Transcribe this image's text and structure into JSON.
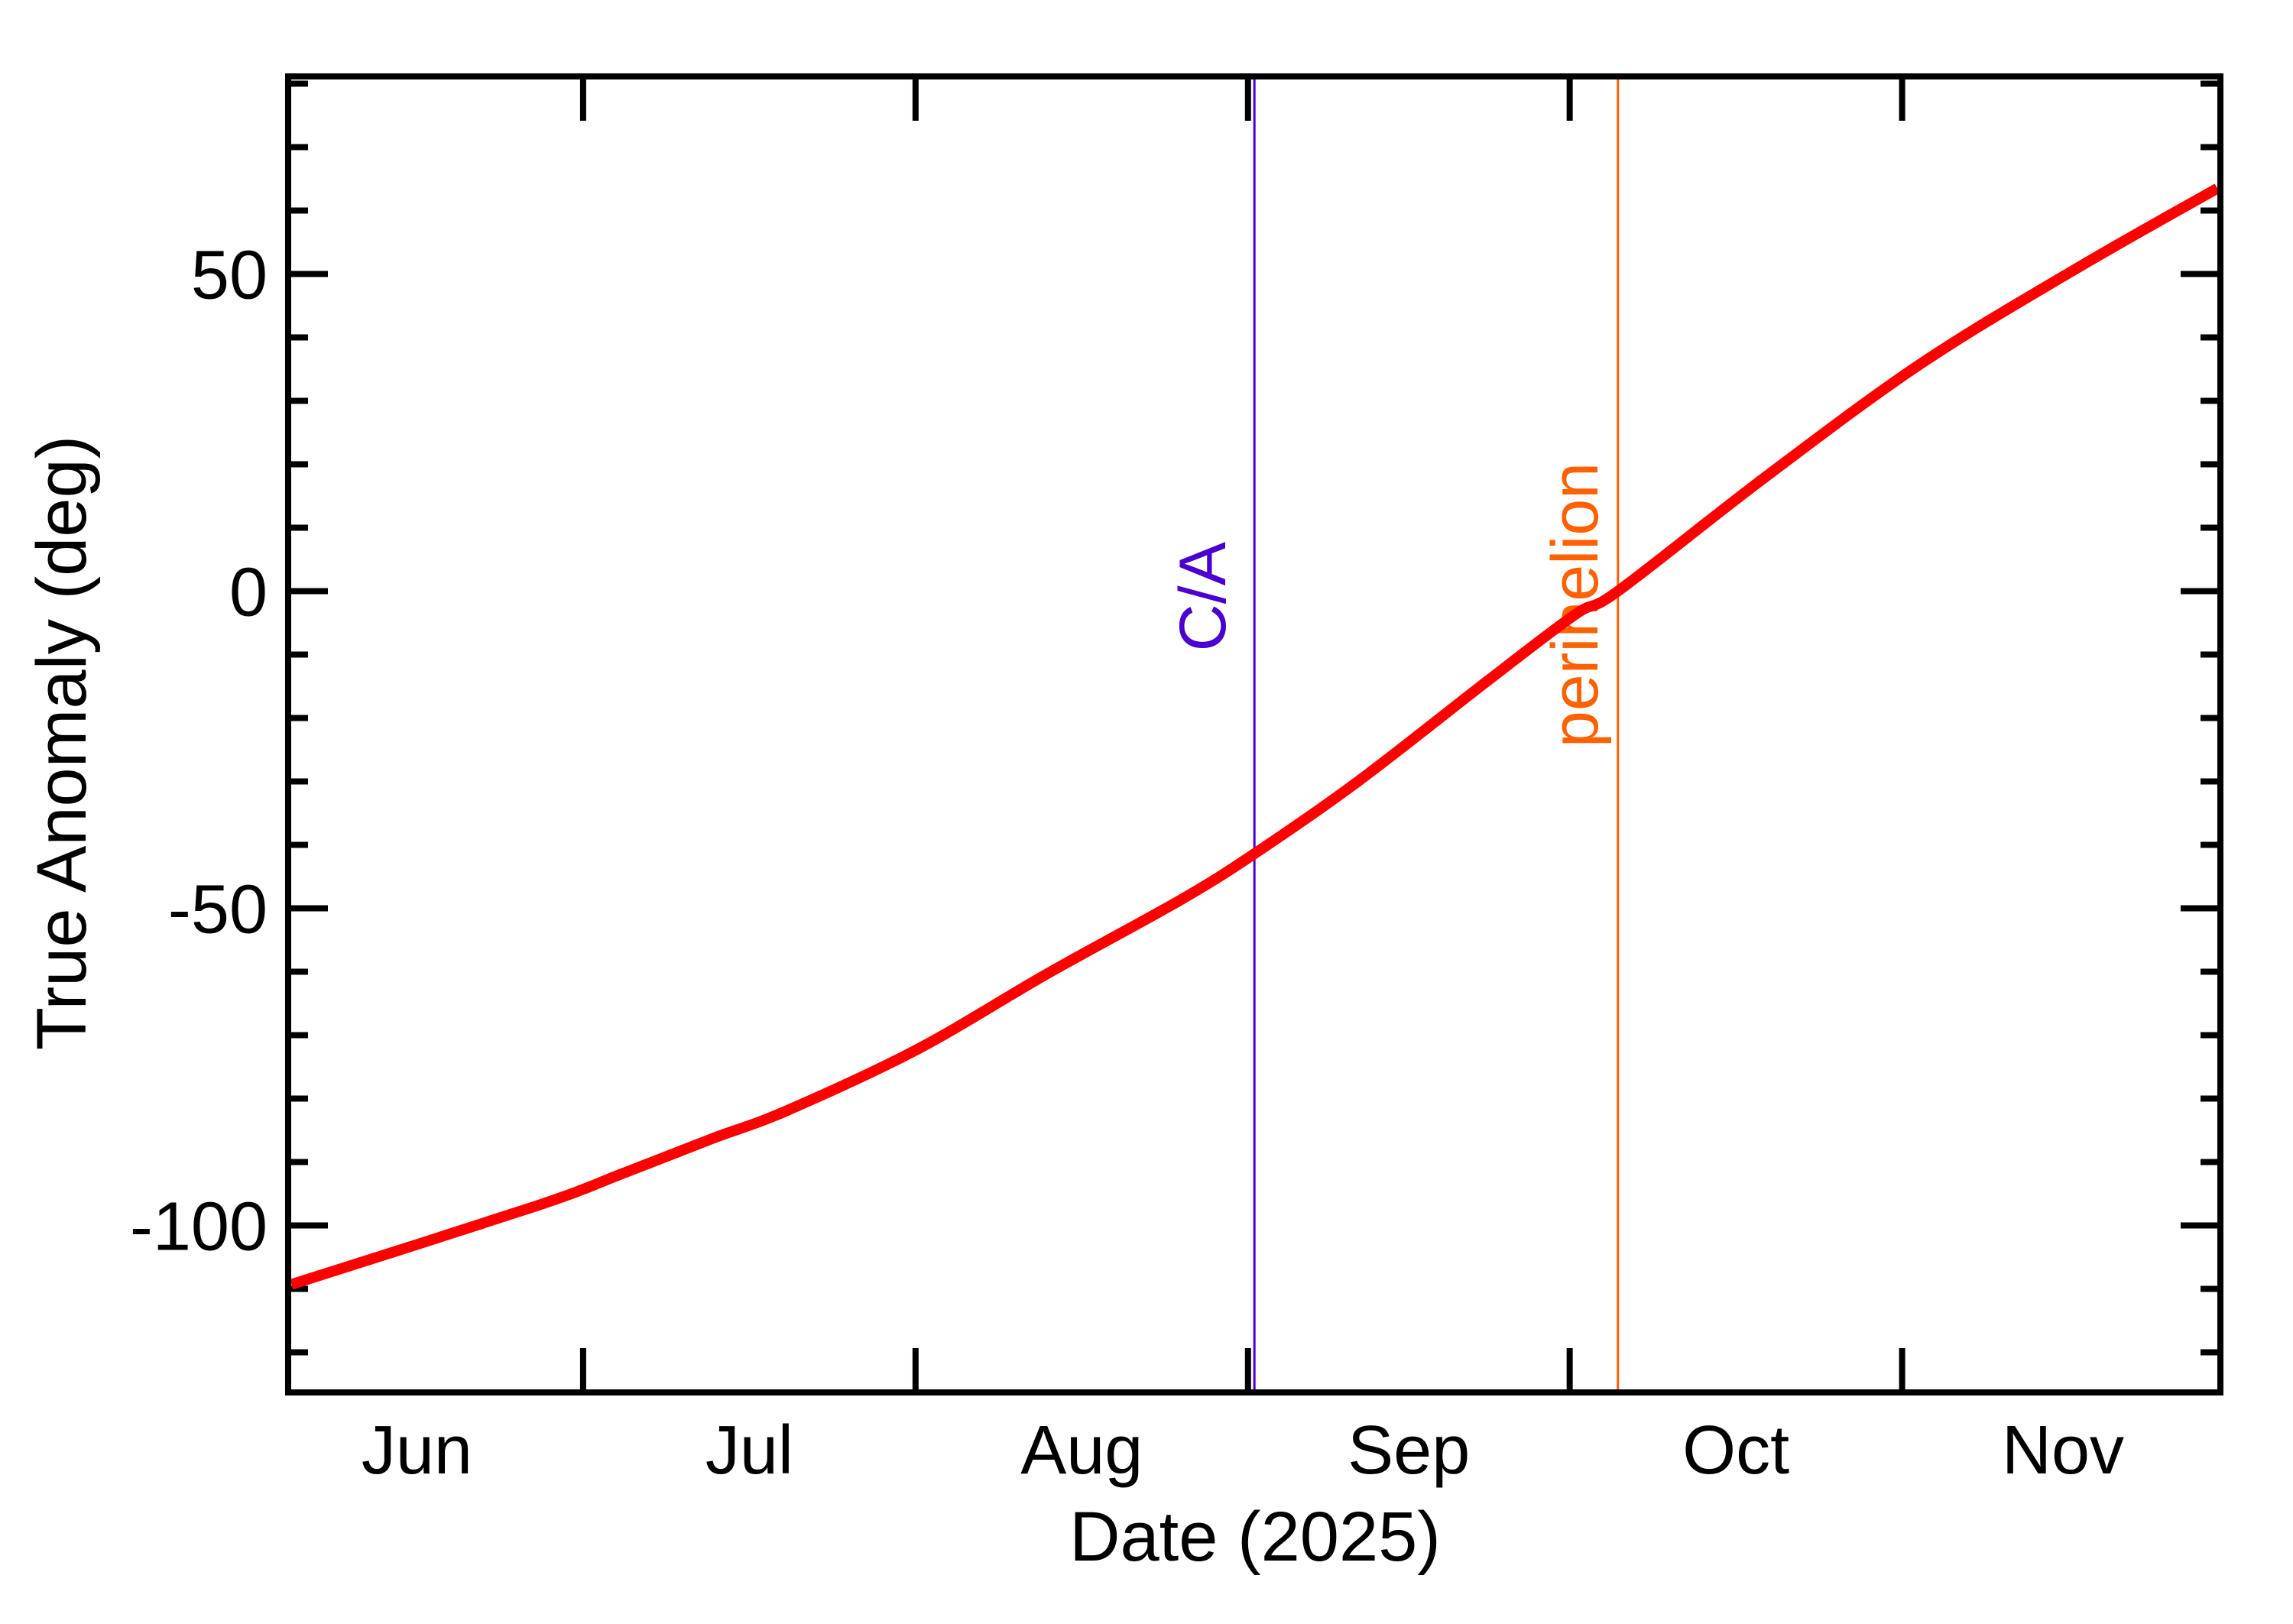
{
  "chart_data": {
    "type": "line",
    "title": "",
    "xlabel": "Date (2025)",
    "ylabel": "True Anomaly (deg)",
    "year": 2025,
    "x_axis": {
      "unit": "days since 2025-06-01",
      "range_days": [
        2.8,
        182.4
      ],
      "range_label": [
        "2025-06-03",
        "2025-11-30"
      ],
      "month_boundaries": [
        {
          "day": 30,
          "date": "2025-07-01"
        },
        {
          "day": 61,
          "date": "2025-08-01"
        },
        {
          "day": 92,
          "date": "2025-09-01"
        },
        {
          "day": 122,
          "date": "2025-10-01"
        },
        {
          "day": 153,
          "date": "2025-11-01"
        }
      ],
      "tick_labels": [
        {
          "label": "Jun",
          "day": 14.5
        },
        {
          "label": "Jul",
          "day": 45.5
        },
        {
          "label": "Aug",
          "day": 76.5
        },
        {
          "label": "Sep",
          "day": 107.0
        },
        {
          "label": "Oct",
          "day": 137.5
        },
        {
          "label": "Nov",
          "day": 168.0
        }
      ]
    },
    "y_axis": {
      "range": [
        -126,
        81
      ],
      "major_ticks": [
        50,
        0,
        -50,
        -100
      ],
      "major_tick_labels": [
        "50",
        "0",
        "-50",
        "-100"
      ],
      "minor_step": 10,
      "grid": false
    },
    "series": [
      {
        "name": "True Anomaly",
        "color": "#ff0000",
        "points": [
          {
            "date": "2025-06-03",
            "day": 2.8,
            "value": -109.3
          },
          {
            "date": "2025-06-26",
            "day": 25.5,
            "value": -97.0
          },
          {
            "date": "2025-07-04",
            "day": 33.7,
            "value": -91.8
          },
          {
            "date": "2025-07-12",
            "day": 41.9,
            "value": -86.4
          },
          {
            "date": "2025-07-20",
            "day": 49.0,
            "value": -81.9
          },
          {
            "date": "2025-08-01",
            "day": 61.2,
            "value": -72.2
          },
          {
            "date": "2025-08-13",
            "day": 73.4,
            "value": -60.2
          },
          {
            "date": "2025-08-25",
            "day": 85.7,
            "value": -48.7
          },
          {
            "date": "2025-09-01",
            "day": 92.6,
            "value": -41.4
          },
          {
            "date": "2025-09-11",
            "day": 102.1,
            "value": -30.2
          },
          {
            "date": "2025-09-23",
            "day": 114.3,
            "value": -14.2
          },
          {
            "date": "2025-10-01",
            "day": 122.5,
            "value": -3.7
          },
          {
            "date": "2025-10-05",
            "day": 126.5,
            "value": 0.0
          },
          {
            "date": "2025-10-19",
            "day": 140.1,
            "value": 17.8
          },
          {
            "date": "2025-11-02",
            "day": 154.7,
            "value": 35.8
          },
          {
            "date": "2025-11-17",
            "day": 169.5,
            "value": 51.1
          },
          {
            "date": "2025-11-30",
            "day": 182.4,
            "value": 63.5
          }
        ]
      }
    ],
    "annotations": [
      {
        "label": "C/A",
        "type": "vertical_line",
        "day": 92.6,
        "date": "2025-09-01",
        "color": "#4a00d0"
      },
      {
        "label": "perihelion",
        "type": "vertical_line",
        "day": 126.5,
        "date": "2025-10-05",
        "color": "#ff6000"
      }
    ],
    "legend": null
  }
}
